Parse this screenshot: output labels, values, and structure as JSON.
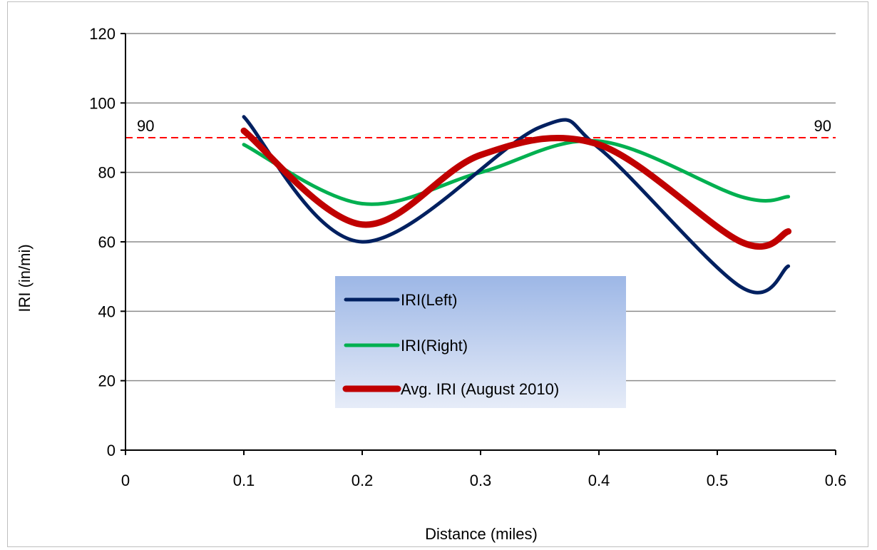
{
  "chart_data": {
    "type": "line",
    "title": "",
    "xlabel": "Distance (miles)",
    "ylabel": "IRI (in/mi)",
    "xlim": [
      0,
      0.6
    ],
    "ylim": [
      0,
      120
    ],
    "x_ticks": [
      "0",
      "0.1",
      "0.2",
      "0.3",
      "0.4",
      "0.5",
      "0.6"
    ],
    "y_ticks": [
      "0",
      "20",
      "40",
      "60",
      "80",
      "100",
      "120"
    ],
    "grid": "horizontal",
    "legend_position": "center",
    "reference_line": {
      "value": 90,
      "label_left": "90",
      "label_right": "90",
      "color": "#ff0000",
      "style": "dashed"
    },
    "series": [
      {
        "name": "IRI(Left)",
        "color": "#002060",
        "x": [
          0.1,
          0.2,
          0.35,
          0.4,
          0.52,
          0.56
        ],
        "y": [
          96,
          60,
          93,
          87,
          47,
          53
        ]
      },
      {
        "name": "IRI(Right)",
        "color": "#00b050",
        "x": [
          0.1,
          0.2,
          0.3,
          0.4,
          0.52,
          0.56
        ],
        "y": [
          88,
          71,
          80,
          89,
          73,
          73
        ]
      },
      {
        "name": "Avg. IRI (August 2010)",
        "color": "#c00000",
        "x": [
          0.1,
          0.2,
          0.3,
          0.4,
          0.52,
          0.56
        ],
        "y": [
          92,
          65,
          85,
          88,
          60,
          63
        ]
      }
    ]
  }
}
